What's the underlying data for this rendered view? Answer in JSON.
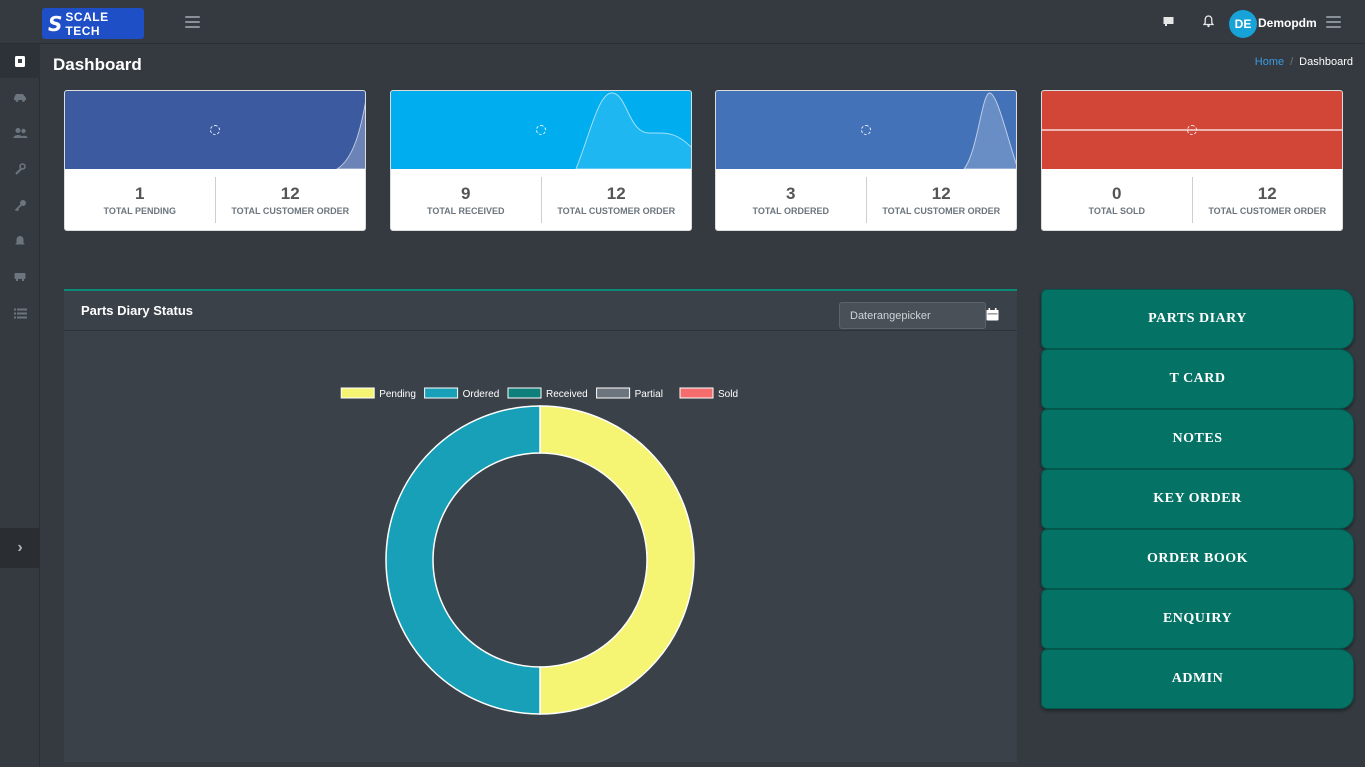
{
  "brand": {
    "logo_mark": "S",
    "logo_text": "SCALE TECH"
  },
  "navbar": {
    "icons": [
      "menu-icon",
      "message-icon",
      "bell-icon",
      "settings-menu-icon"
    ],
    "user": {
      "initials": "DE",
      "name": "Demopdm"
    }
  },
  "sidebar": {
    "items": [
      "dashboard-icon",
      "car-icon",
      "users-icon",
      "wrench-icon",
      "key-icon",
      "bell-icon",
      "bus-icon",
      "list-icon"
    ],
    "collapse_glyph": "›"
  },
  "page": {
    "title": "Dashboard"
  },
  "breadcrumb": {
    "home": "Home",
    "separator": "/",
    "current": "Dashboard"
  },
  "stats": [
    {
      "color": "#3b5aa0",
      "left": {
        "value": "1",
        "label": "TOTAL PENDING"
      },
      "right": {
        "value": "12",
        "label": "TOTAL CUSTOMER ORDER"
      }
    },
    {
      "color": "#00aeef",
      "left": {
        "value": "9",
        "label": "TOTAL RECEIVED"
      },
      "right": {
        "value": "12",
        "label": "TOTAL CUSTOMER ORDER"
      }
    },
    {
      "color": "#4472b8",
      "left": {
        "value": "3",
        "label": "TOTAL ORDERED"
      },
      "right": {
        "value": "12",
        "label": "TOTAL CUSTOMER ORDER"
      }
    },
    {
      "color": "#d24637",
      "left": {
        "value": "0",
        "label": "TOTAL SOLD"
      },
      "right": {
        "value": "12",
        "label": "TOTAL CUSTOMER ORDER"
      }
    }
  ],
  "panel": {
    "title": "Parts Diary Status",
    "daterange_placeholder": "Daterangepicker"
  },
  "chart_data": {
    "type": "pie",
    "variant": "doughnut",
    "legend_position": "top",
    "categories": [
      "Pending",
      "Ordered",
      "Received",
      "Partial",
      "Sold"
    ],
    "values": [
      1,
      1,
      0,
      0,
      0
    ],
    "colors": [
      "#f5f473",
      "#17a0b8",
      "#0e7f7a",
      "#6c757d",
      "#f56c6c"
    ]
  },
  "menu": [
    "PARTS  DIARY",
    "T  CARD",
    "NOTES",
    "KEY  ORDER",
    "ORDER  BOOK",
    "ENQUIRY",
    "ADMIN"
  ]
}
